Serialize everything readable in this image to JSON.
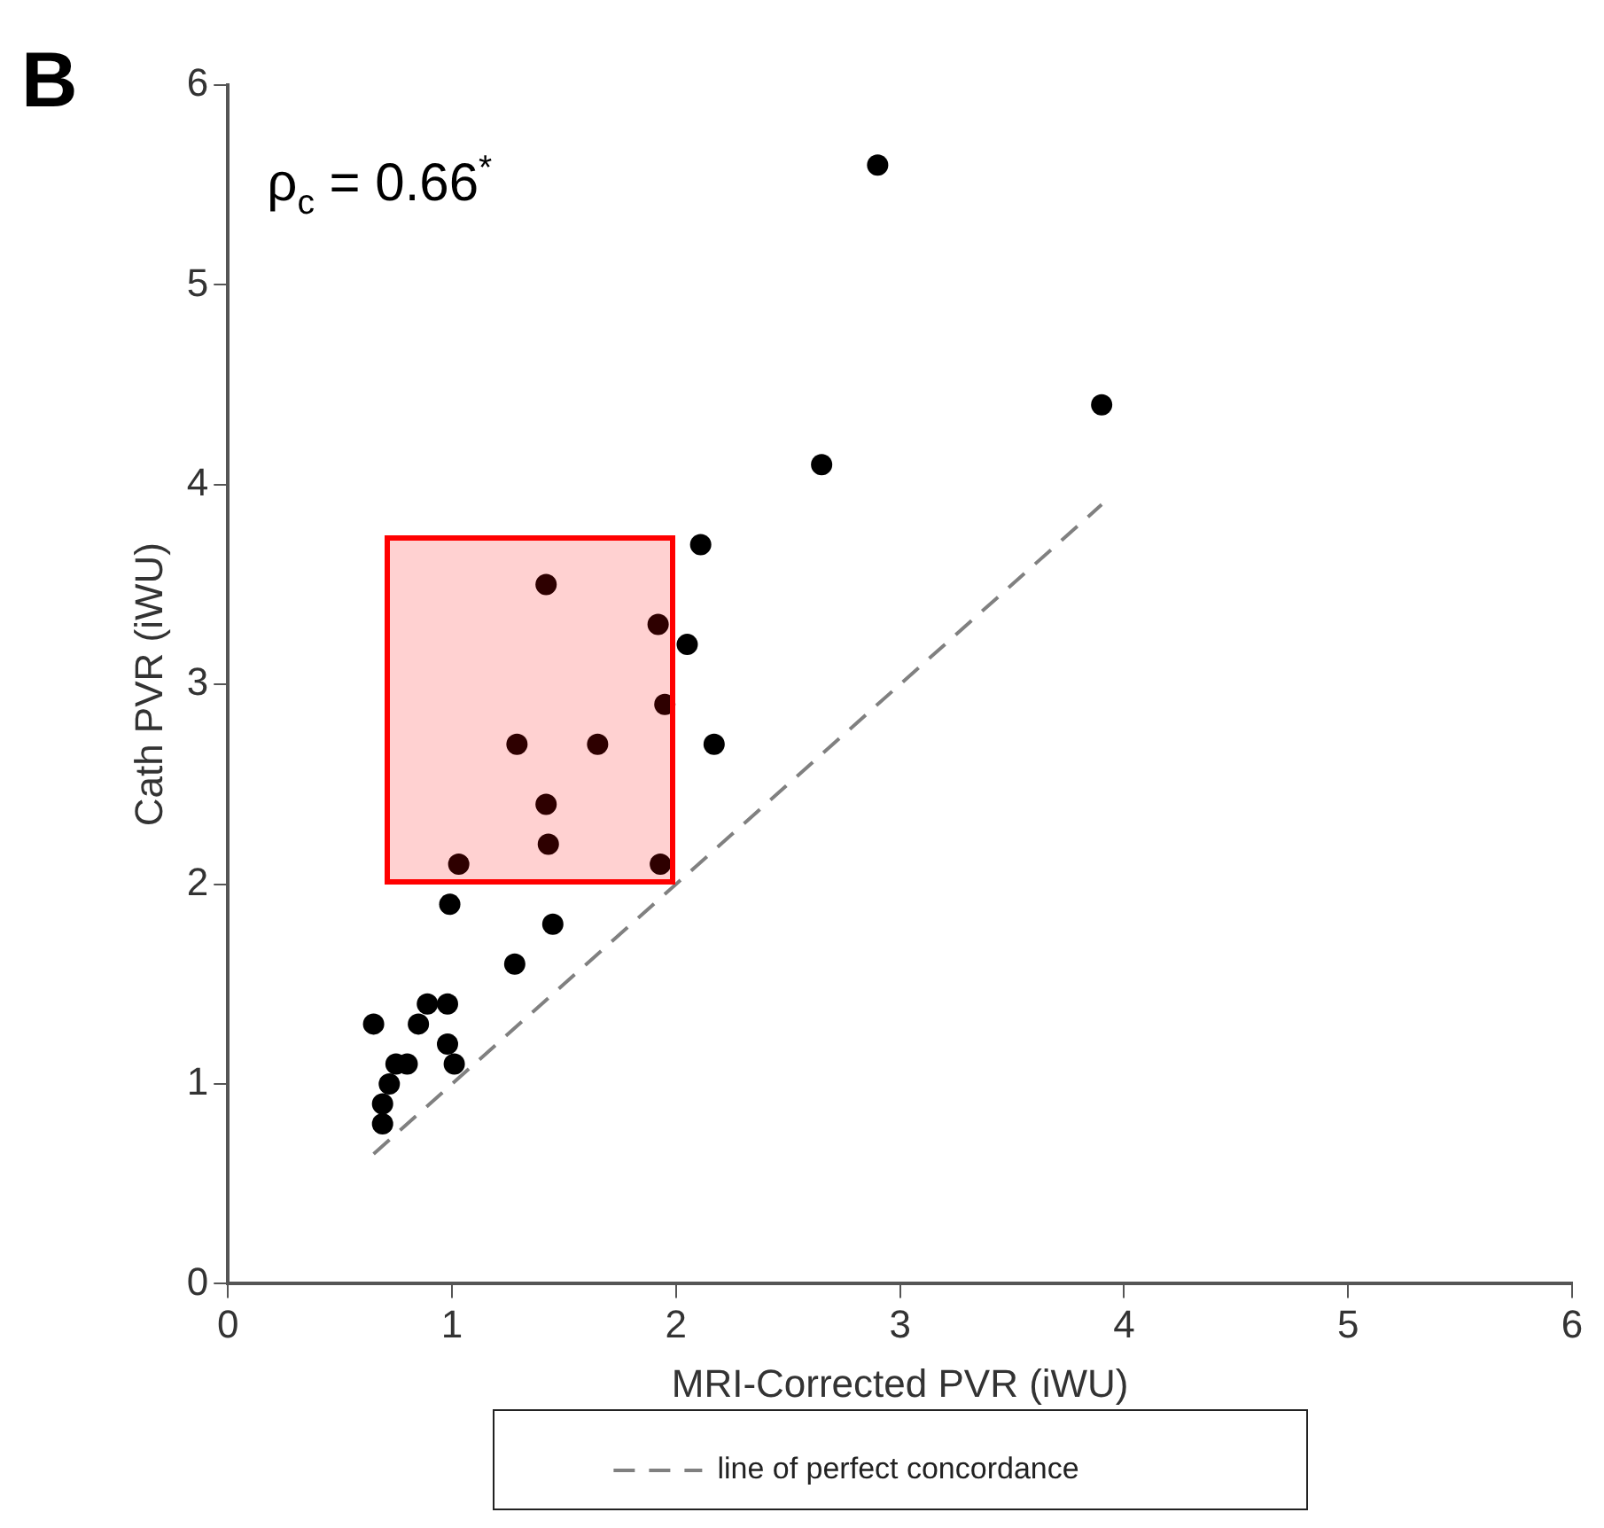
{
  "chart_data": {
    "type": "scatter",
    "title": "B",
    "xlabel": "MRI-Corrected PVR (iWU)",
    "ylabel": "Cath PVR (iWU)",
    "annotations": [
      "ρ$_{c}$ = 0.66$^{*}$"
    ],
    "xlim": [
      0,
      6
    ],
    "ylim": [
      0,
      6
    ],
    "xticks": [
      0,
      1,
      2,
      3,
      4,
      5,
      6
    ],
    "yticks": [
      0,
      1,
      2,
      3,
      4,
      5,
      6
    ],
    "grid": false,
    "legend": "bottom",
    "marker": "circle",
    "series": [
      {
        "color": "#000000",
        "x": [
          2.9,
          2.65,
          3.9,
          2.11,
          1.42,
          1.92,
          2.05,
          1.95,
          1.29,
          1.65,
          2.17,
          1.42,
          1.43,
          1.03,
          1.93,
          0.99,
          1.45,
          1.28,
          0.65,
          0.89,
          0.98,
          0.85,
          0.98,
          1.01,
          0.8,
          0.75,
          0.72,
          0.69,
          0.69
        ],
        "values": [
          5.6,
          4.1,
          4.4,
          3.7,
          3.5,
          3.3,
          3.2,
          2.9,
          2.7,
          2.7,
          2.7,
          2.4,
          2.2,
          2.1,
          2.1,
          1.9,
          1.8,
          1.6,
          1.3,
          1.4,
          1.4,
          1.3,
          1.2,
          1.1,
          1.1,
          1.1,
          1.0,
          0.9,
          0.8
        ]
      },
      {
        "type": "line",
        "name": "line of perfect concordance",
        "color": "#808080",
        "line_style": "dashed",
        "marker": "none",
        "x": [
          0.65,
          3.9
        ],
        "values": [
          0.65,
          3.9
        ]
      }
    ]
  }
}
